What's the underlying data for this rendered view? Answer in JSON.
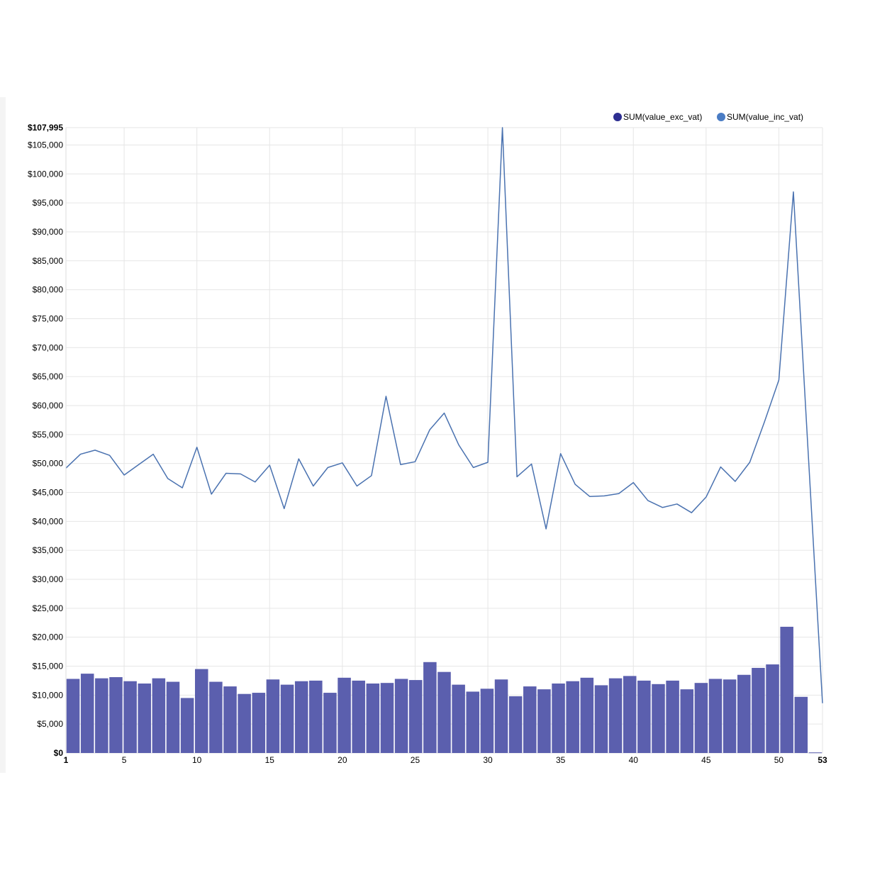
{
  "chart_data": {
    "type": "bar",
    "x": [
      1,
      2,
      3,
      4,
      5,
      6,
      7,
      8,
      9,
      10,
      11,
      12,
      13,
      14,
      15,
      16,
      17,
      18,
      19,
      20,
      21,
      22,
      23,
      24,
      25,
      26,
      27,
      28,
      29,
      30,
      31,
      32,
      33,
      34,
      35,
      36,
      37,
      38,
      39,
      40,
      41,
      42,
      43,
      44,
      45,
      46,
      47,
      48,
      49,
      50,
      51,
      52,
      53
    ],
    "xlim": [
      1,
      53
    ],
    "x_ticks": [
      1,
      5,
      10,
      15,
      20,
      25,
      30,
      35,
      40,
      45,
      50,
      53
    ],
    "ylim": [
      0,
      107995
    ],
    "y_ticks": [
      0,
      5000,
      10000,
      15000,
      20000,
      25000,
      30000,
      35000,
      40000,
      45000,
      50000,
      55000,
      60000,
      65000,
      70000,
      75000,
      80000,
      85000,
      90000,
      95000,
      100000,
      105000,
      107995
    ],
    "y_tick_labels": [
      "$0",
      "$5,000",
      "$10,000",
      "$15,000",
      "$20,000",
      "$25,000",
      "$30,000",
      "$35,000",
      "$40,000",
      "$45,000",
      "$50,000",
      "$55,000",
      "$60,000",
      "$65,000",
      "$70,000",
      "$75,000",
      "$80,000",
      "$85,000",
      "$90,000",
      "$95,000",
      "$100,000",
      "$105,000",
      "$107,995"
    ],
    "grid": true,
    "legend_position": "top-right",
    "series": [
      {
        "name": "SUM(value_exc_vat)",
        "type": "bar",
        "color": "#5b5fae",
        "legend_color": "#2d2e91",
        "values": [
          12800,
          13700,
          12900,
          13100,
          12400,
          12000,
          12900,
          12300,
          9500,
          14500,
          12300,
          11500,
          10200,
          10400,
          12700,
          11800,
          12400,
          12500,
          10400,
          13000,
          12500,
          12000,
          12100,
          12800,
          12600,
          15700,
          14000,
          11800,
          10600,
          11100,
          12700,
          9800,
          11500,
          11000,
          12000,
          12400,
          13000,
          11700,
          12900,
          13300,
          12500,
          11900,
          12500,
          11000,
          12100,
          12800,
          12700,
          13500,
          14700,
          15300,
          21800,
          9700,
          100
        ]
      },
      {
        "name": "SUM(value_inc_vat)",
        "type": "line",
        "color": "#4a72b0",
        "legend_color": "#4a7cc4",
        "values": [
          49200,
          51600,
          52300,
          51400,
          48000,
          49800,
          51600,
          47400,
          45800,
          52800,
          44700,
          48300,
          48200,
          46800,
          49700,
          42200,
          50800,
          46100,
          49300,
          50100,
          46100,
          47900,
          61600,
          49800,
          50300,
          55800,
          58700,
          53200,
          49300,
          50200,
          107995,
          47700,
          49900,
          38700,
          51700,
          46400,
          44300,
          44400,
          44800,
          46700,
          43600,
          42400,
          43000,
          41500,
          44200,
          49400,
          46900,
          50200,
          57100,
          64400,
          96900,
          52600,
          8600
        ]
      }
    ]
  }
}
